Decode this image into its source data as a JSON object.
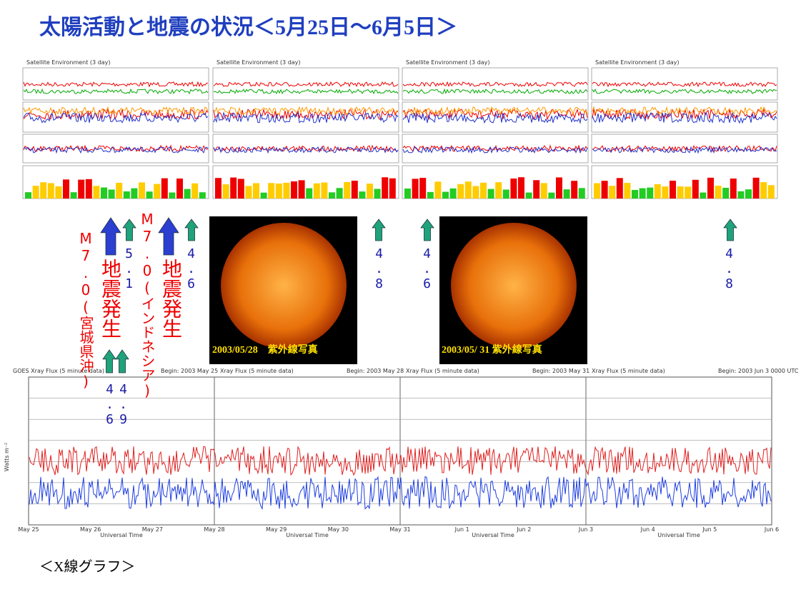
{
  "title": "太陽活動と地震の状況＜5月25日～6月5日＞",
  "top_panels": [
    {
      "header": "Satellite Environment (3 day)"
    },
    {
      "header": "Satellite Environment (3 day)"
    },
    {
      "header": "Satellite Environment (3 day)"
    },
    {
      "header": "Satellite Environment (3 day)"
    }
  ],
  "events": [
    {
      "label": "地震発生",
      "detail": "M7.0(宮城県沖)"
    },
    {
      "label": "地震発生",
      "detail": "M7.0(インドネシア)"
    }
  ],
  "magnitudes": [
    "5.1",
    "4.6",
    "4.8",
    "4.6",
    "4.8",
    "4.6",
    "4.9"
  ],
  "images": [
    {
      "caption": "2003/05/28　紫外線写真"
    },
    {
      "caption": "2003/05/ 31 紫外線写真"
    }
  ],
  "xray": {
    "panels": [
      {
        "title": "GOES Xray Flux (5 minute data)",
        "begin": "Begin: 2003 May 25"
      },
      {
        "title": "Xray Flux (5 minute data)",
        "begin": "Begin: 2003 May 28"
      },
      {
        "title": "Xray Flux (5 minute data)",
        "begin": "Begin: 2003 May 31"
      },
      {
        "title": "Xray Flux (5 minute data)",
        "begin": "Begin: 2003 Jun 3 0000 UTC"
      }
    ],
    "y_label": "Watts m⁻²",
    "x_label": "Universal Time",
    "dates": [
      "May 25",
      "May 26",
      "May 27",
      "May 28",
      "May 29",
      "May 30",
      "May 31",
      "Jun 1",
      "Jun 2",
      "Jun 3",
      "Jun 4",
      "Jun 5",
      "Jun 6"
    ]
  },
  "footer_caption": "＜X線グラフ＞"
}
